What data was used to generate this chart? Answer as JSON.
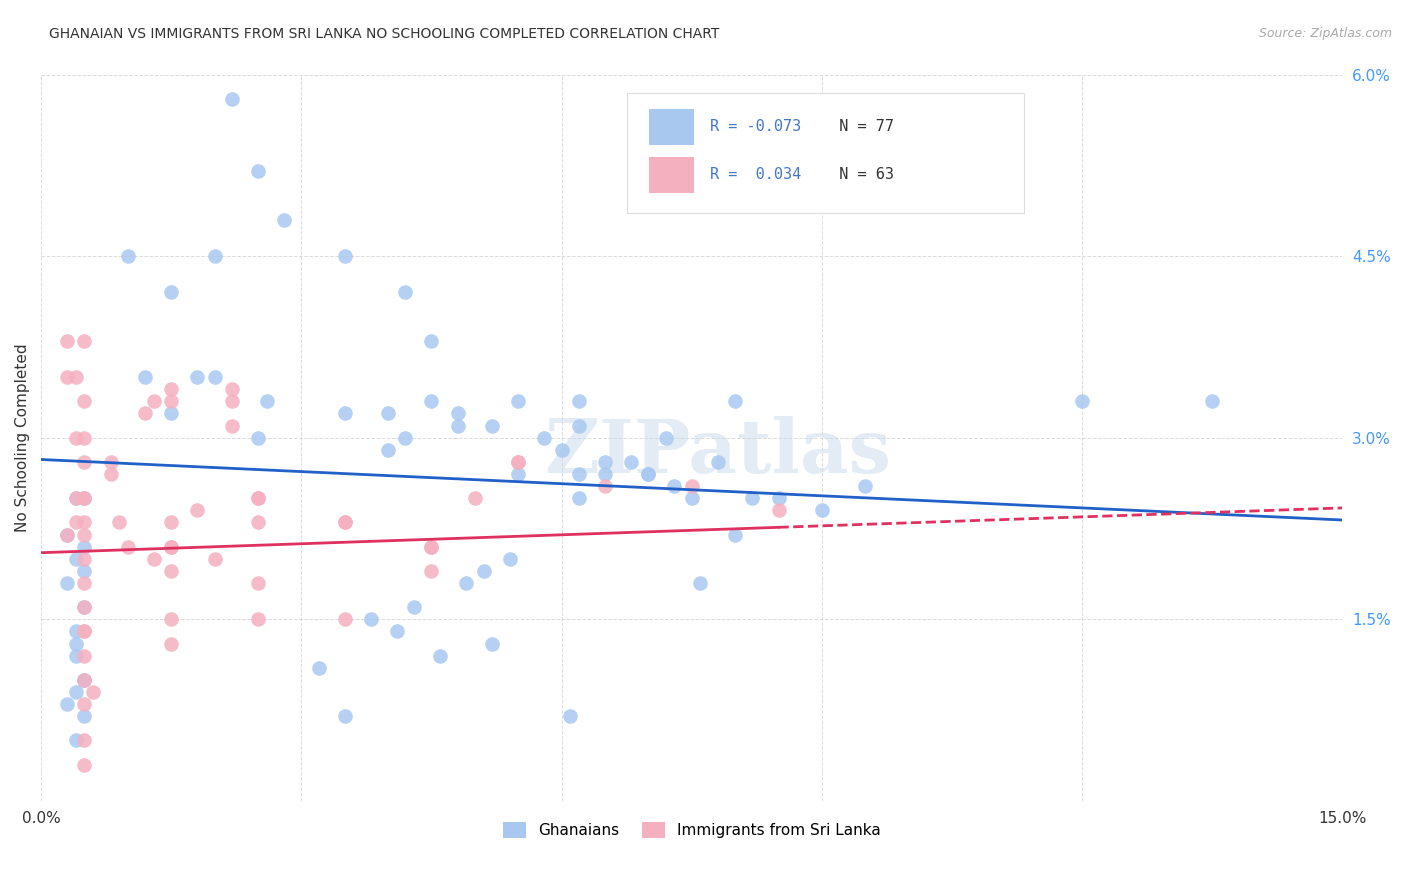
{
  "title": "GHANAIAN VS IMMIGRANTS FROM SRI LANKA NO SCHOOLING COMPLETED CORRELATION CHART",
  "source": "Source: ZipAtlas.com",
  "ylabel": "No Schooling Completed",
  "xlim": [
    0,
    15
  ],
  "ylim": [
    0,
    6
  ],
  "yticks": [
    0,
    1.5,
    3.0,
    4.5,
    6.0
  ],
  "ytick_labels": [
    "",
    "1.5%",
    "3.0%",
    "4.5%",
    "6.0%"
  ],
  "xticks": [
    0,
    3,
    6,
    9,
    12,
    15
  ],
  "xtick_labels": [
    "0.0%",
    "",
    "",
    "",
    "",
    "15.0%"
  ],
  "R_blue": -0.073,
  "N_blue": 77,
  "R_pink": 0.034,
  "N_pink": 63,
  "blue_color": "#a8c8f0",
  "pink_color": "#f5b0c0",
  "trend_blue": "#2060c8",
  "trend_pink": "#e03060",
  "background": "#ffffff",
  "grid_color": "#cccccc",
  "watermark": "ZIPatlas",
  "blue_trend_x0": 0,
  "blue_trend_y0": 2.82,
  "blue_trend_x1": 15,
  "blue_trend_y1": 2.32,
  "pink_trend_x0": 0,
  "pink_trend_y0": 2.05,
  "pink_trend_x1": 15,
  "pink_trend_y1": 2.42,
  "pink_solid_end": 8.5,
  "blue_x": [
    2.2,
    2.5,
    1.0,
    1.5,
    2.0,
    1.8,
    2.8,
    3.5,
    2.5,
    2.6,
    1.5,
    4.2,
    2.0,
    3.5,
    1.2,
    4.0,
    4.5,
    4.2,
    4.8,
    5.5,
    5.2,
    6.2,
    5.8,
    6.0,
    6.2,
    7.0,
    4.5,
    7.0,
    7.2,
    5.5,
    7.8,
    8.0,
    8.2,
    4.0,
    6.5,
    9.0,
    6.5,
    9.5,
    8.5,
    6.2,
    6.8,
    4.8,
    6.2,
    7.5,
    8.0,
    12.0,
    0.3,
    0.4,
    0.3,
    0.4,
    0.5,
    0.5,
    0.5,
    0.4,
    0.4,
    0.5,
    0.4,
    0.3,
    0.5,
    0.4,
    0.5,
    0.4,
    3.2,
    3.5,
    3.8,
    5.2,
    4.1,
    4.3,
    4.6,
    4.9,
    5.1,
    5.4,
    6.1,
    7.3,
    7.6,
    13.5,
    0.5
  ],
  "blue_y": [
    5.8,
    5.2,
    4.5,
    4.2,
    4.5,
    3.5,
    4.8,
    4.5,
    3.0,
    3.3,
    3.2,
    4.2,
    3.5,
    3.2,
    3.5,
    3.2,
    3.8,
    3.0,
    3.2,
    3.3,
    3.1,
    3.3,
    3.0,
    2.9,
    3.1,
    2.7,
    3.3,
    2.7,
    3.0,
    2.7,
    2.8,
    3.3,
    2.5,
    2.9,
    2.8,
    2.4,
    2.7,
    2.6,
    2.5,
    2.7,
    2.8,
    3.1,
    2.5,
    2.5,
    2.2,
    3.3,
    2.2,
    2.5,
    1.8,
    2.0,
    2.1,
    2.5,
    1.9,
    1.4,
    1.3,
    1.6,
    0.9,
    0.8,
    1.0,
    1.2,
    0.7,
    0.5,
    1.1,
    0.7,
    1.5,
    1.3,
    1.4,
    1.6,
    1.2,
    1.8,
    1.9,
    2.0,
    0.7,
    2.6,
    1.8,
    3.3,
    1.0
  ],
  "pink_x": [
    0.3,
    0.3,
    0.3,
    0.4,
    0.4,
    0.4,
    0.5,
    0.5,
    0.5,
    0.5,
    0.5,
    0.5,
    0.5,
    0.5,
    0.5,
    0.5,
    0.5,
    0.5,
    0.5,
    0.5,
    0.5,
    0.5,
    0.8,
    0.8,
    0.9,
    1.0,
    1.2,
    1.3,
    1.3,
    1.5,
    1.5,
    1.5,
    1.8,
    1.5,
    2.0,
    2.2,
    2.2,
    2.2,
    2.5,
    2.5,
    2.5,
    2.5,
    3.5,
    3.5,
    4.5,
    4.5,
    0.5,
    0.4,
    1.5,
    1.5,
    0.5,
    0.6,
    2.5,
    3.5,
    4.5,
    5.5,
    1.5,
    1.5,
    5.0,
    5.5,
    6.5,
    7.5,
    8.5
  ],
  "pink_y": [
    3.5,
    3.8,
    2.2,
    3.5,
    3.0,
    2.5,
    3.8,
    3.3,
    3.0,
    2.8,
    2.5,
    2.3,
    2.2,
    2.0,
    1.8,
    1.6,
    1.4,
    1.2,
    1.0,
    0.8,
    0.5,
    0.3,
    2.8,
    2.7,
    2.3,
    2.1,
    3.2,
    2.0,
    3.3,
    3.4,
    3.3,
    2.1,
    2.4,
    1.9,
    2.0,
    3.4,
    3.3,
    3.1,
    2.5,
    2.3,
    1.8,
    1.5,
    2.3,
    1.5,
    2.1,
    1.9,
    2.5,
    2.3,
    2.1,
    2.3,
    1.4,
    0.9,
    2.5,
    2.3,
    2.1,
    2.8,
    1.5,
    1.3,
    2.5,
    2.8,
    2.6,
    2.6,
    2.4
  ]
}
